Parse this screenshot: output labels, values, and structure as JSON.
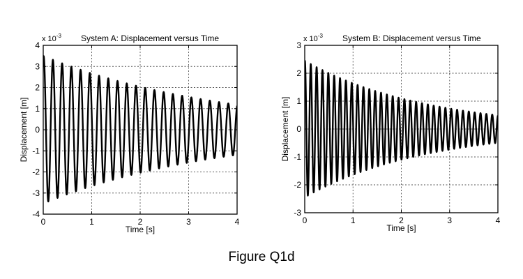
{
  "figure": {
    "caption": "Figure Q1d"
  },
  "chart_data": [
    {
      "type": "line",
      "title": "System A: Displacement versus Time",
      "xlabel": "Time [s]",
      "ylabel": "Displacement [m]",
      "y_scale_label": "x 10",
      "y_scale_exponent": "-3",
      "xlim": [
        0,
        4
      ],
      "ylim": [
        -4,
        4
      ],
      "xticks": [
        "0",
        "1",
        "2",
        "3",
        "4"
      ],
      "yticks": [
        "-4",
        "-3",
        "-2",
        "-1",
        "0",
        "1",
        "2",
        "3",
        "4"
      ],
      "grid": true,
      "series": [
        {
          "name": "System A",
          "description": "damped sinusoid, approx. 5.25 Hz, decaying envelope",
          "initial_amplitude": 3.5,
          "frequency_hz": 5.25,
          "decay_rate_per_s": 0.27,
          "envelope_peaks": [
            {
              "t": 0.05,
              "y": 3.5
            },
            {
              "t": 0.29,
              "y": 3.3
            },
            {
              "t": 0.48,
              "y": 3.1
            },
            {
              "t": 0.67,
              "y": 2.9
            },
            {
              "t": 0.86,
              "y": 2.75
            },
            {
              "t": 1.05,
              "y": 2.6
            },
            {
              "t": 1.43,
              "y": 2.3
            },
            {
              "t": 2.0,
              "y": 2.0
            },
            {
              "t": 3.0,
              "y": 1.6
            },
            {
              "t": 3.9,
              "y": 1.2
            }
          ]
        }
      ]
    },
    {
      "type": "line",
      "title": "System B: Displacement versus Time",
      "xlabel": "Time [s]",
      "ylabel": "Displacement [m]",
      "y_scale_label": "x 10",
      "y_scale_exponent": "-3",
      "xlim": [
        0,
        4
      ],
      "ylim": [
        -3,
        3
      ],
      "xticks": [
        "0",
        "1",
        "2",
        "3",
        "4"
      ],
      "yticks": [
        "-3",
        "-2",
        "-1",
        "0",
        "1",
        "2",
        "3"
      ],
      "grid": true,
      "series": [
        {
          "name": "System B",
          "description": "damped sinusoid, approx. 8.25 Hz, decaying envelope",
          "initial_amplitude": 2.45,
          "frequency_hz": 8.25,
          "decay_rate_per_s": 0.4,
          "envelope_peaks": [
            {
              "t": 0.03,
              "y": 2.4
            },
            {
              "t": 0.15,
              "y": 2.3
            },
            {
              "t": 0.27,
              "y": 2.2
            },
            {
              "t": 0.5,
              "y": 2.0
            },
            {
              "t": 1.0,
              "y": 1.6
            },
            {
              "t": 2.0,
              "y": 1.1
            },
            {
              "t": 3.0,
              "y": 0.75
            },
            {
              "t": 3.9,
              "y": 0.5
            }
          ]
        }
      ]
    }
  ]
}
